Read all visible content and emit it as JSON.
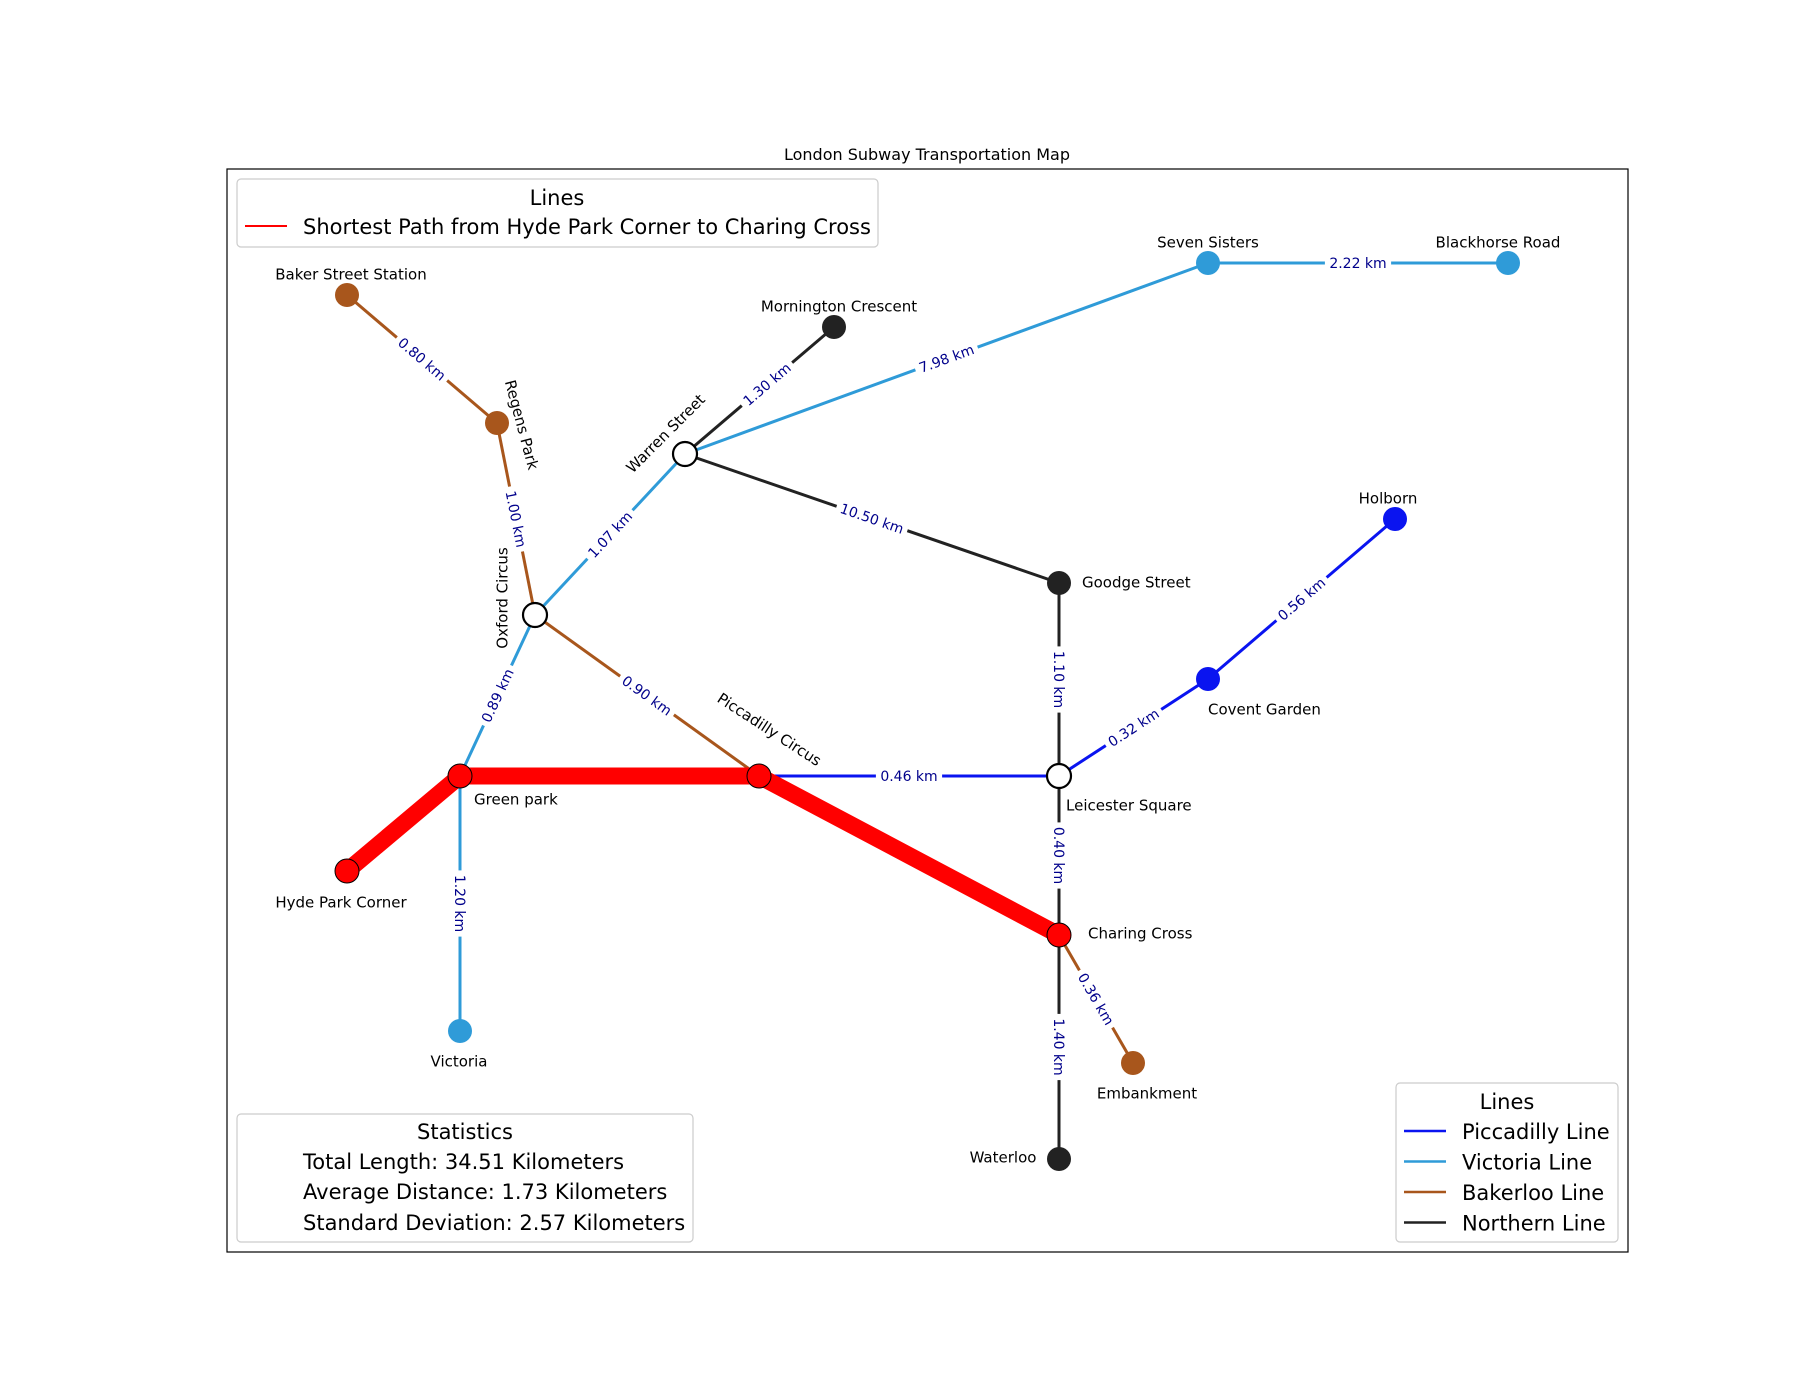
{
  "title": "London Subway Transportation Map",
  "colors": {
    "piccadilly": "#0a14f0",
    "victoria": "#2f9bd8",
    "bakerloo": "#a8561c",
    "northern": "#222222",
    "path": "#ff0000",
    "interchange": "#ffffff",
    "edge_label": "#00008b"
  },
  "stations": [
    {
      "id": "baker",
      "name": "Baker Street Station",
      "line": "bakerloo"
    },
    {
      "id": "regens",
      "name": "Regens Park",
      "line": "bakerloo"
    },
    {
      "id": "oxford",
      "name": "Oxford Circus",
      "line": "interchange"
    },
    {
      "id": "warren",
      "name": "Warren Street",
      "line": "interchange"
    },
    {
      "id": "mornington",
      "name": "Mornington Crescent",
      "line": "northern"
    },
    {
      "id": "seven",
      "name": "Seven Sisters",
      "line": "victoria"
    },
    {
      "id": "blackhorse",
      "name": "Blackhorse Road",
      "line": "victoria"
    },
    {
      "id": "holborn",
      "name": "Holborn",
      "line": "piccadilly"
    },
    {
      "id": "goodge",
      "name": "Goodge Street",
      "line": "northern"
    },
    {
      "id": "covent",
      "name": "Covent Garden",
      "line": "piccadilly"
    },
    {
      "id": "green",
      "name": "Green park",
      "line": "path"
    },
    {
      "id": "piccadilly",
      "name": "Piccadilly Circus",
      "line": "path"
    },
    {
      "id": "leicester",
      "name": "Leicester Square",
      "line": "interchange"
    },
    {
      "id": "hyde",
      "name": "Hyde Park Corner",
      "line": "path"
    },
    {
      "id": "charing",
      "name": "Charing Cross",
      "line": "path"
    },
    {
      "id": "victoria",
      "name": "Victoria",
      "line": "victoria"
    },
    {
      "id": "embankment",
      "name": "Embankment",
      "line": "bakerloo"
    },
    {
      "id": "waterloo",
      "name": "Waterloo",
      "line": "northern"
    }
  ],
  "edges": [
    {
      "from": "baker",
      "to": "regens",
      "line": "bakerloo",
      "label": "0.80 km"
    },
    {
      "from": "regens",
      "to": "oxford",
      "line": "bakerloo",
      "label": "1.00 km"
    },
    {
      "from": "oxford",
      "to": "piccadilly",
      "line": "bakerloo",
      "label": "0.90 km"
    },
    {
      "from": "charing",
      "to": "embankment",
      "line": "bakerloo",
      "label": "0.36 km"
    },
    {
      "from": "oxford",
      "to": "warren",
      "line": "victoria",
      "label": "1.07 km"
    },
    {
      "from": "warren",
      "to": "seven",
      "line": "victoria",
      "label": "7.98 km"
    },
    {
      "from": "seven",
      "to": "blackhorse",
      "line": "victoria",
      "label": "2.22 km"
    },
    {
      "from": "oxford",
      "to": "green",
      "line": "victoria",
      "label": "0.89 km"
    },
    {
      "from": "green",
      "to": "victoria",
      "line": "victoria",
      "label": "1.20 km"
    },
    {
      "from": "warren",
      "to": "mornington",
      "line": "northern",
      "label": "1.30 km"
    },
    {
      "from": "warren",
      "to": "goodge",
      "line": "northern",
      "label": "10.50 km"
    },
    {
      "from": "goodge",
      "to": "leicester",
      "line": "northern",
      "label": "1.10 km"
    },
    {
      "from": "leicester",
      "to": "charing",
      "line": "northern",
      "label": "0.40 km"
    },
    {
      "from": "charing",
      "to": "waterloo",
      "line": "northern",
      "label": "1.40 km"
    },
    {
      "from": "piccadilly",
      "to": "leicester",
      "line": "piccadilly",
      "label": "0.46 km"
    },
    {
      "from": "leicester",
      "to": "covent",
      "line": "piccadilly",
      "label": "0.32 km"
    },
    {
      "from": "covent",
      "to": "holborn",
      "line": "piccadilly",
      "label": "0.56 km"
    }
  ],
  "shortest_path": [
    "hyde",
    "green",
    "piccadilly",
    "charing"
  ],
  "legend_top": {
    "title": "Lines",
    "entry": "Shortest Path from Hyde Park Corner to Charing Cross"
  },
  "legend_lines": {
    "title": "Lines",
    "entries": [
      {
        "label": "Piccadilly Line",
        "line": "piccadilly"
      },
      {
        "label": "Victoria Line",
        "line": "victoria"
      },
      {
        "label": "Bakerloo Line",
        "line": "bakerloo"
      },
      {
        "label": "Northern Line",
        "line": "northern"
      }
    ]
  },
  "statistics": {
    "title": "Statistics",
    "total": "Total Length: 34.51 Kilometers",
    "average": "Average Distance: 1.73 Kilometers",
    "stddev": "Standard Deviation: 2.57 Kilometers"
  }
}
